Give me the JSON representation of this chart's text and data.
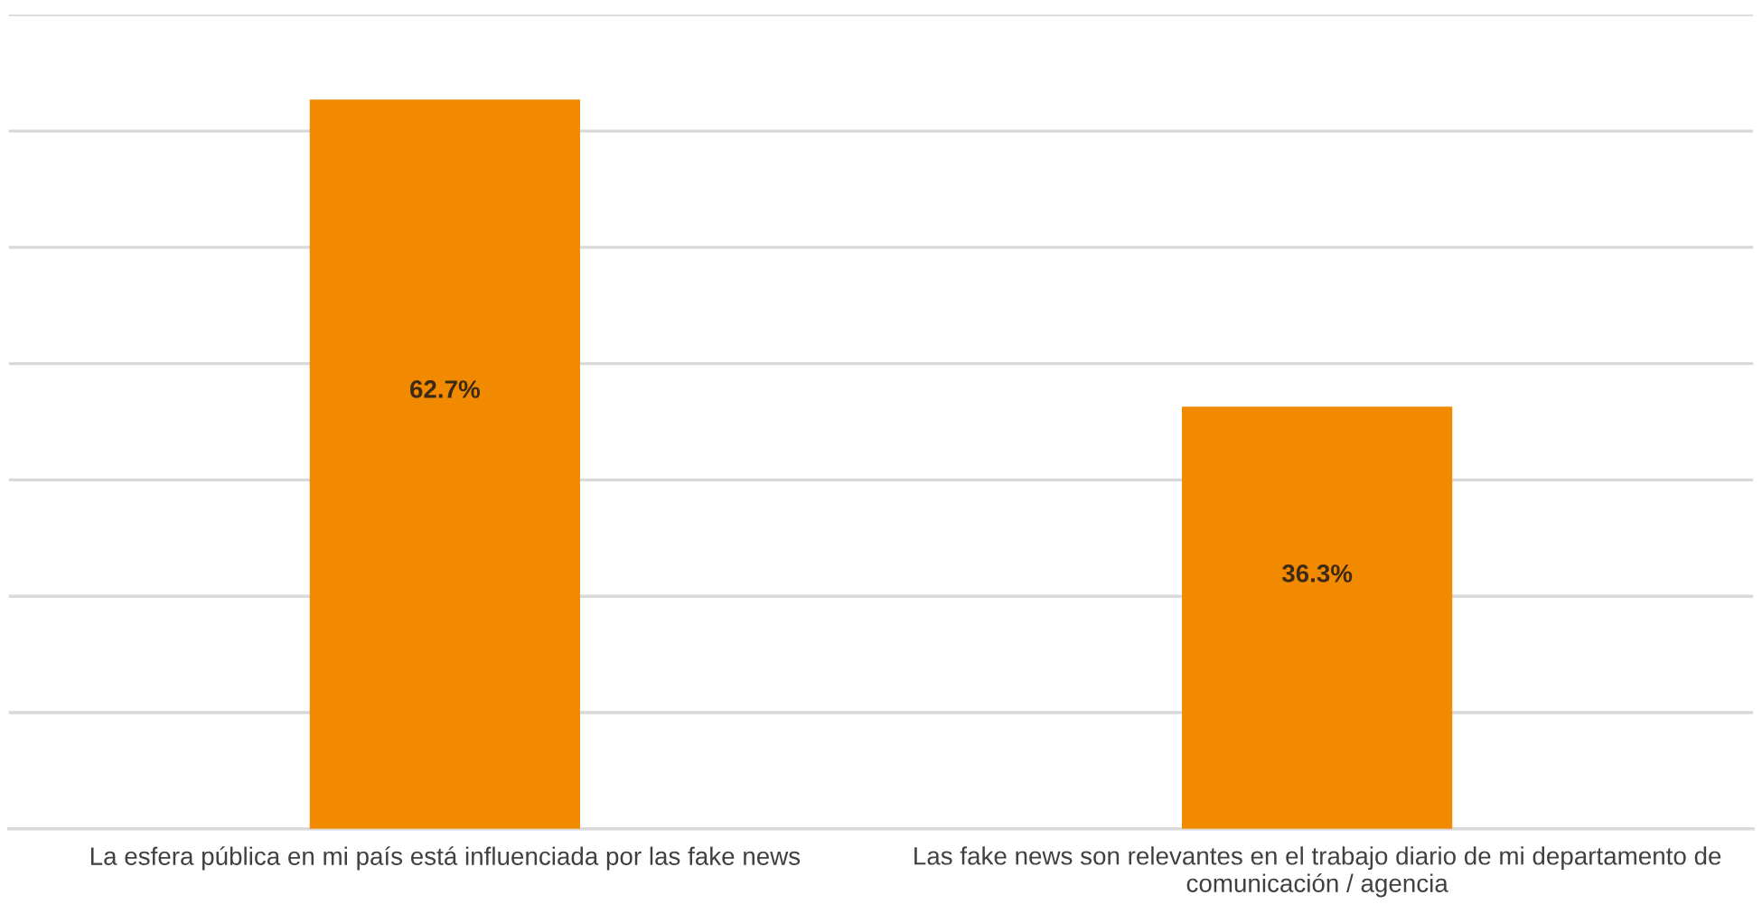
{
  "chart_data": {
    "type": "bar",
    "categories": [
      "La esfera pública en mi país está influenciada por las fake news",
      "Las fake news son relevantes en el trabajo diario de mi departamento de comunicación / agencia"
    ],
    "values": [
      62.7,
      36.3
    ],
    "color": "#f18a00",
    "value_labels": [
      "62.7%",
      "36.3%"
    ],
    "ylim": [
      0,
      70
    ],
    "yticks": [
      {
        "value": 0,
        "label": null
      },
      {
        "value": 10,
        "label": null
      },
      {
        "value": 20,
        "label": null
      },
      {
        "value": 30,
        "label": null
      },
      {
        "value": 40,
        "label": null
      },
      {
        "value": 50,
        "label": null
      },
      {
        "value": 60,
        "label": null
      },
      {
        "value": 70,
        "label": null
      }
    ],
    "grid": "y",
    "tick_labels": "x"
  }
}
